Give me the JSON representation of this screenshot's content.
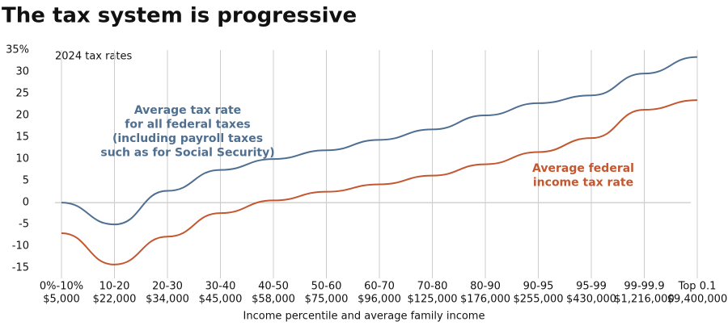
{
  "chart_data": {
    "type": "line",
    "title": "The tax system is progressive",
    "subtitle": "2024 tax rates",
    "x_label": "Income percentile and average family income",
    "categories": [
      "0%-10%",
      "10-20",
      "20-30",
      "30-40",
      "40-50",
      "50-60",
      "60-70",
      "70-80",
      "80-90",
      "90-95",
      "95-99",
      "99-99.9",
      "Top 0.1"
    ],
    "category_incomes": [
      "$5,000",
      "$22,000",
      "$34,000",
      "$45,000",
      "$58,000",
      "$75,000",
      "$96,000",
      "$125,000",
      "$176,000",
      "$255,000",
      "$430,000",
      "$1,216,000",
      "$9,400,000"
    ],
    "series": [
      {
        "name": [
          "Average tax rate",
          "for all federal taxes",
          "(including payroll taxes",
          "such as for Social Security)"
        ],
        "color": "#4f6f91",
        "values": [
          0,
          -5,
          2.7,
          7.5,
          10,
          12,
          14.4,
          16.8,
          20,
          22.8,
          24.6,
          29.6,
          33.4
        ]
      },
      {
        "name": [
          "Average federal",
          "income tax rate"
        ],
        "color": "#c4572f",
        "values": [
          -7,
          -14.2,
          -7.8,
          -2.4,
          0.5,
          2.5,
          4.2,
          6.2,
          8.8,
          11.6,
          14.8,
          21.3,
          23.5
        ]
      }
    ],
    "ylim": [
      -17,
      35
    ],
    "yticks": [
      -15,
      -10,
      -5,
      0,
      5,
      10,
      15,
      20,
      25,
      30,
      {
        "value": 35,
        "label": "35%"
      }
    ],
    "grid": true
  }
}
